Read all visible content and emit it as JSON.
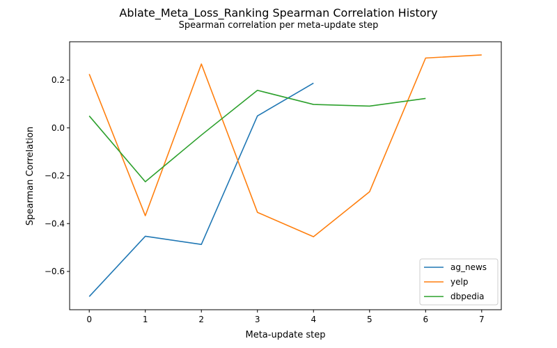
{
  "chart_data": {
    "type": "line",
    "title": "Ablate_Meta_Loss_Ranking Spearman Correlation History",
    "subtitle": "Spearman correlation per meta-update step",
    "xlabel": "Meta-update step",
    "ylabel": "Spearman Correlation",
    "xlim": [
      -0.35,
      7.35
    ],
    "ylim": [
      -0.76,
      0.36
    ],
    "xticks": [
      0,
      1,
      2,
      3,
      4,
      5,
      6,
      7
    ],
    "yticks": [
      -0.6,
      -0.4,
      -0.2,
      0.0,
      0.2
    ],
    "ytick_labels": [
      "−0.6",
      "−0.4",
      "−0.2",
      "0.0",
      "0.2"
    ],
    "grid": false,
    "legend_position": "lower-right",
    "series": [
      {
        "name": "ag_news",
        "color": "#1f77b4",
        "x": [
          0,
          1,
          2,
          3,
          4
        ],
        "y": [
          -0.705,
          -0.453,
          -0.487,
          0.05,
          0.187
        ]
      },
      {
        "name": "yelp",
        "color": "#ff7f0e",
        "x": [
          0,
          1,
          2,
          3,
          4,
          5,
          6,
          7
        ],
        "y": [
          0.225,
          -0.367,
          0.267,
          -0.353,
          -0.455,
          -0.267,
          0.292,
          0.305
        ]
      },
      {
        "name": "dbpedia",
        "color": "#2ca02c",
        "x": [
          0,
          1,
          2,
          3,
          4,
          5,
          6
        ],
        "y": [
          0.05,
          -0.225,
          -0.03,
          0.157,
          0.098,
          0.091,
          0.123
        ]
      }
    ]
  }
}
